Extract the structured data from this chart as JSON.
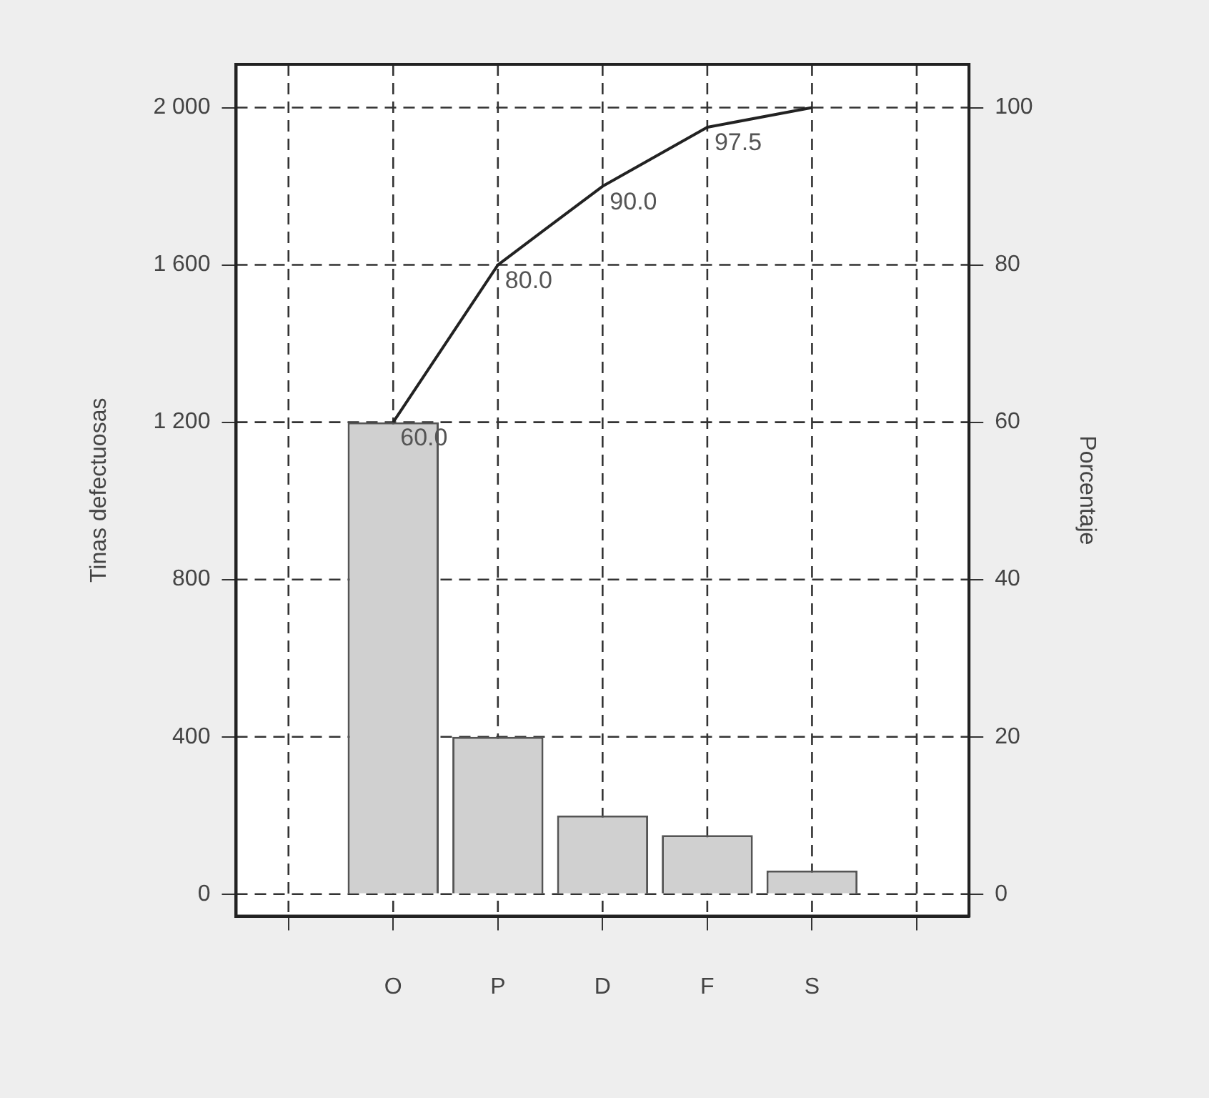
{
  "chart_data": {
    "type": "bar",
    "xlabel": null,
    "ylabel": "Tinas defectuosas",
    "y2label": "Porcentaje",
    "categories": [
      null,
      "O",
      "P",
      "D",
      "F",
      "S",
      null
    ],
    "series": [
      {
        "color": "#d0d0d0",
        "values": [
          null,
          1200,
          400,
          200,
          150,
          60,
          null
        ]
      },
      {
        "type": "line",
        "axis": "y2",
        "color": "#222222",
        "values": [
          null,
          60,
          80,
          90,
          97.5,
          100,
          null
        ],
        "value_labels": [
          null,
          "60.0",
          "80.0",
          "90.0",
          "97.5",
          null,
          null
        ]
      }
    ],
    "ylim": [
      -56,
      2110
    ],
    "yticks": [
      0,
      400,
      800,
      {
        "value": 1200,
        "label": "1 200"
      },
      {
        "value": 1600,
        "label": "1 600"
      },
      {
        "value": 2000,
        "label": "2 000"
      }
    ],
    "y2lim": [
      -2.8,
      105.5
    ],
    "y2ticks": [
      0,
      20,
      40,
      60,
      80,
      100
    ],
    "grid": true,
    "legend": false,
    "line_style": "solid",
    "marker": "none"
  }
}
